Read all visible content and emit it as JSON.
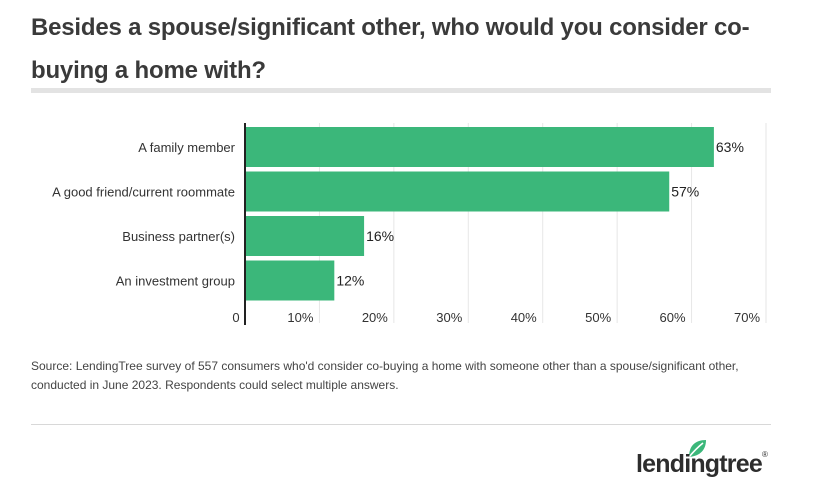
{
  "title": "Besides a spouse/significant other, who would you consider co-buying a home with?",
  "source": "Source: LendingTree survey of 557 consumers who'd consider co-buying a home with someone other than a spouse/significant other, conducted in June 2023. Respondents could select multiple answers.",
  "logo": {
    "text": "lendingtree",
    "icon": "leaf-icon"
  },
  "colors": {
    "bar": "#3bb77a",
    "axis": "#222222",
    "grid": "#e6e6e6",
    "text": "#333333"
  },
  "chart_data": {
    "type": "bar",
    "orientation": "horizontal",
    "categories": [
      "A family member",
      "A good friend/current roommate",
      "Business partner(s)",
      "An investment group"
    ],
    "values": [
      63,
      57,
      16,
      12
    ],
    "value_labels": [
      "63%",
      "57%",
      "16%",
      "12%"
    ],
    "xlim": [
      0,
      70
    ],
    "xticks": [
      0,
      10,
      20,
      30,
      40,
      50,
      60,
      70
    ],
    "xtick_labels": [
      "0",
      "10%",
      "20%",
      "30%",
      "40%",
      "50%",
      "60%",
      "70%"
    ],
    "grid": true
  }
}
